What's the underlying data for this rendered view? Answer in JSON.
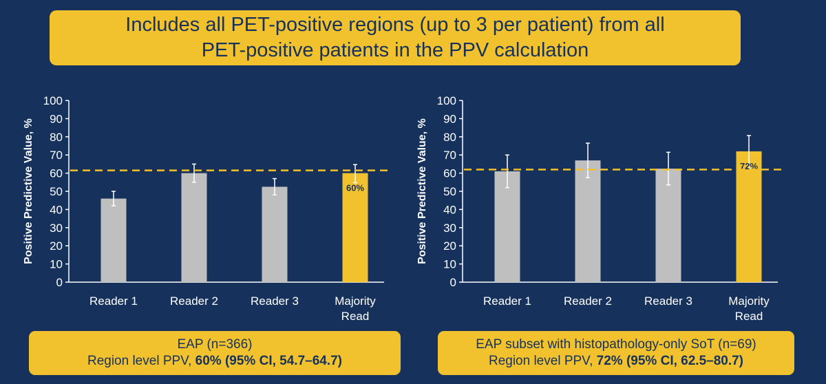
{
  "banner": {
    "line1": "Includes all PET-positive regions (up to 3 per patient) from all",
    "line2": "PET-positive patients in the PPV calculation"
  },
  "colors": {
    "background": "#16325c",
    "accent": "#f2c12e",
    "reader_bar": "#bfbfbf",
    "majority_bar": "#f2c12e",
    "axis": "#ffffff"
  },
  "chart_data": [
    {
      "type": "bar",
      "ylabel": "Positive Predictive Value, %",
      "ylim": [
        0,
        100
      ],
      "yticks": [
        0,
        10,
        20,
        30,
        40,
        50,
        60,
        70,
        80,
        90,
        100
      ],
      "categories": [
        [
          "Reader 1"
        ],
        [
          "Reader 2"
        ],
        [
          "Reader 3"
        ],
        [
          "Majority",
          "Read"
        ]
      ],
      "values": [
        46,
        60,
        52.5,
        60
      ],
      "error_low": [
        42,
        55,
        48,
        54.7
      ],
      "error_high": [
        50,
        65,
        57,
        64.7
      ],
      "data_labels": [
        "",
        "",
        "",
        "60%"
      ],
      "reference_line": 61.5,
      "caption": {
        "line1": "EAP (n=366)",
        "line2_prefix": "Region level PPV, ",
        "line2_bold": "60% (95% CI, 54.7–64.7)"
      }
    },
    {
      "type": "bar",
      "ylabel": "Positive Predictive Value, %",
      "ylim": [
        0,
        100
      ],
      "yticks": [
        0,
        10,
        20,
        30,
        40,
        50,
        60,
        70,
        80,
        90,
        100
      ],
      "categories": [
        [
          "Reader 1"
        ],
        [
          "Reader 2"
        ],
        [
          "Reader 3"
        ],
        [
          "Majority",
          "Read"
        ]
      ],
      "values": [
        61,
        67,
        62.5,
        72
      ],
      "error_low": [
        52,
        57.5,
        53.5,
        62.5
      ],
      "error_high": [
        70,
        76.5,
        71.5,
        80.7
      ],
      "data_labels": [
        "",
        "",
        "",
        "72%"
      ],
      "reference_line": 62,
      "caption": {
        "line1": "EAP subset with histopathology-only SoT (n=69)",
        "line2_prefix": "Region level PPV, ",
        "line2_bold": "72% (95% CI, 62.5–80.7)"
      }
    }
  ]
}
